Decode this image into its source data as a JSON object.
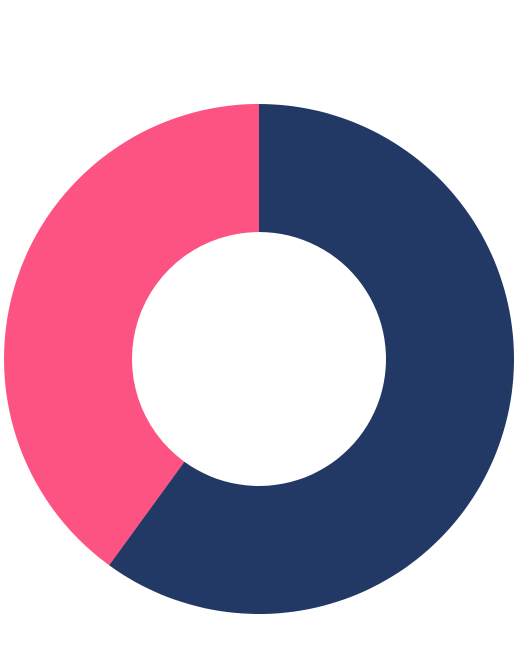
{
  "chart_data": {
    "type": "pie",
    "variant": "donut",
    "slices": [
      {
        "value": 60,
        "color": "#213964"
      },
      {
        "value": 40,
        "color": "#fd5383"
      }
    ],
    "start": "top",
    "direction": "clockwise",
    "legend": "none",
    "background": "#ffffff"
  }
}
